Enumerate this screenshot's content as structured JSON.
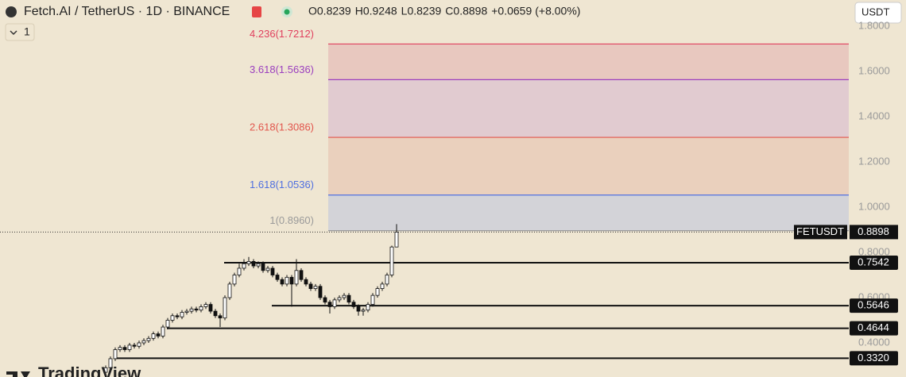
{
  "header": {
    "symbol": "Fetch.AI / TetherUS · 1D · BINANCE",
    "ohlc": [
      {
        "label": "O",
        "value": "0.8239"
      },
      {
        "label": "H",
        "value": "0.9248"
      },
      {
        "label": "L",
        "value": "0.8239"
      },
      {
        "label": "C",
        "value": "0.8898"
      }
    ],
    "change": "+0.0659",
    "change_pct": "(+8.00%)",
    "currency": "USDT",
    "indicator_count": "1"
  },
  "price_axis": {
    "ticks": [
      {
        "value": 1.8,
        "label": "1.8000"
      },
      {
        "value": 1.6,
        "label": "1.6000"
      },
      {
        "value": 1.4,
        "label": "1.4000"
      },
      {
        "value": 1.2,
        "label": "1.2000"
      },
      {
        "value": 1.0,
        "label": "1.0000"
      },
      {
        "value": 0.8,
        "label": "0.8000"
      },
      {
        "value": 0.6,
        "label": "0.6000"
      },
      {
        "value": 0.4,
        "label": "0.4000"
      }
    ]
  },
  "fib_levels": [
    {
      "label": "1(0.8960)",
      "price": 0.896,
      "color": "#9a9a9a",
      "fill": "#d3d3d8"
    },
    {
      "label": "1.618(1.0536)",
      "price": 1.0536,
      "color": "#4f6fe0",
      "fill": "#ead0bd"
    },
    {
      "label": "2.618(1.3086)",
      "price": 1.3086,
      "color": "#e2554c",
      "fill": "#e1cbd0"
    },
    {
      "label": "3.618(1.5636)",
      "price": 1.5636,
      "color": "#9b3fbf",
      "fill": "#e8c8bf"
    },
    {
      "label": "4.236(1.7212)",
      "price": 1.7212,
      "color": "#e0405e"
    }
  ],
  "levels": [
    {
      "price": 0.7542,
      "label": "0.7542"
    },
    {
      "price": 0.5646,
      "label": "0.5646"
    },
    {
      "price": 0.4644,
      "label": "0.4644"
    },
    {
      "price": 0.332,
      "label": "0.3320"
    }
  ],
  "current_price": {
    "symbol": "FETUSDT",
    "price": 0.8898,
    "label": "0.8898"
  },
  "candles": [
    [
      0.27,
      0.3,
      0.26,
      0.29
    ],
    [
      0.29,
      0.34,
      0.28,
      0.33
    ],
    [
      0.33,
      0.38,
      0.32,
      0.37
    ],
    [
      0.37,
      0.39,
      0.36,
      0.38
    ],
    [
      0.38,
      0.39,
      0.36,
      0.37
    ],
    [
      0.37,
      0.4,
      0.36,
      0.39
    ],
    [
      0.39,
      0.4,
      0.375,
      0.385
    ],
    [
      0.385,
      0.41,
      0.375,
      0.4
    ],
    [
      0.4,
      0.42,
      0.39,
      0.41
    ],
    [
      0.41,
      0.43,
      0.4,
      0.42
    ],
    [
      0.42,
      0.45,
      0.41,
      0.44
    ],
    [
      0.44,
      0.45,
      0.42,
      0.43
    ],
    [
      0.43,
      0.48,
      0.42,
      0.47
    ],
    [
      0.47,
      0.51,
      0.46,
      0.5
    ],
    [
      0.5,
      0.53,
      0.49,
      0.52
    ],
    [
      0.52,
      0.53,
      0.505,
      0.515
    ],
    [
      0.515,
      0.545,
      0.505,
      0.535
    ],
    [
      0.535,
      0.55,
      0.525,
      0.54
    ],
    [
      0.54,
      0.56,
      0.53,
      0.55
    ],
    [
      0.55,
      0.56,
      0.535,
      0.545
    ],
    [
      0.545,
      0.57,
      0.535,
      0.56
    ],
    [
      0.56,
      0.58,
      0.55,
      0.57
    ],
    [
      0.57,
      0.58,
      0.53,
      0.54
    ],
    [
      0.54,
      0.55,
      0.51,
      0.52
    ],
    [
      0.52,
      0.53,
      0.47,
      0.51
    ],
    [
      0.51,
      0.61,
      0.5,
      0.6
    ],
    [
      0.6,
      0.67,
      0.59,
      0.66
    ],
    [
      0.66,
      0.71,
      0.65,
      0.7
    ],
    [
      0.7,
      0.75,
      0.69,
      0.73
    ],
    [
      0.73,
      0.77,
      0.72,
      0.75
    ],
    [
      0.75,
      0.78,
      0.74,
      0.76
    ],
    [
      0.76,
      0.77,
      0.73,
      0.74
    ],
    [
      0.74,
      0.76,
      0.73,
      0.75
    ],
    [
      0.75,
      0.76,
      0.71,
      0.72
    ],
    [
      0.72,
      0.74,
      0.71,
      0.73
    ],
    [
      0.73,
      0.74,
      0.69,
      0.7
    ],
    [
      0.7,
      0.71,
      0.67,
      0.68
    ],
    [
      0.68,
      0.69,
      0.65,
      0.66
    ],
    [
      0.66,
      0.7,
      0.65,
      0.69
    ],
    [
      0.69,
      0.7,
      0.56,
      0.66
    ],
    [
      0.66,
      0.77,
      0.65,
      0.72
    ],
    [
      0.72,
      0.73,
      0.67,
      0.68
    ],
    [
      0.68,
      0.69,
      0.65,
      0.66
    ],
    [
      0.66,
      0.67,
      0.63,
      0.64
    ],
    [
      0.64,
      0.66,
      0.63,
      0.65
    ],
    [
      0.65,
      0.66,
      0.59,
      0.6
    ],
    [
      0.6,
      0.61,
      0.57,
      0.58
    ],
    [
      0.58,
      0.59,
      0.53,
      0.56
    ],
    [
      0.56,
      0.6,
      0.55,
      0.59
    ],
    [
      0.59,
      0.61,
      0.58,
      0.6
    ],
    [
      0.6,
      0.62,
      0.59,
      0.61
    ],
    [
      0.61,
      0.62,
      0.57,
      0.58
    ],
    [
      0.58,
      0.59,
      0.55,
      0.56
    ],
    [
      0.56,
      0.57,
      0.52,
      0.54
    ],
    [
      0.54,
      0.555,
      0.52,
      0.545
    ],
    [
      0.545,
      0.58,
      0.535,
      0.57
    ],
    [
      0.57,
      0.62,
      0.56,
      0.61
    ],
    [
      0.61,
      0.65,
      0.6,
      0.64
    ],
    [
      0.64,
      0.67,
      0.63,
      0.66
    ],
    [
      0.66,
      0.71,
      0.65,
      0.7
    ],
    [
      0.7,
      0.83,
      0.69,
      0.8239
    ],
    [
      0.8239,
      0.9248,
      0.8239,
      0.8898
    ]
  ],
  "branding": "TradingView"
}
